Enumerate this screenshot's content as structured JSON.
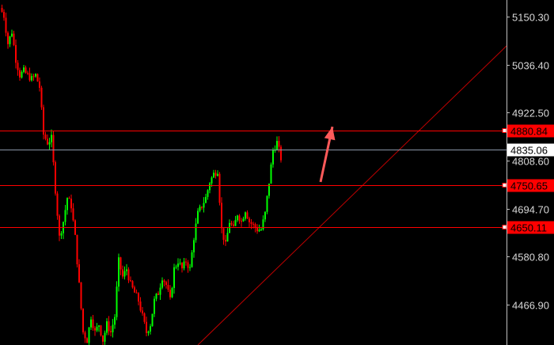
{
  "chart_data": {
    "type": "candlestick",
    "y_range": [
      4371.2,
      5189.7
    ],
    "y_ticks": [
      "5150.30",
      "5036.40",
      "4922.50",
      "4808.60",
      "4694.70",
      "4580.80",
      "4466.90"
    ],
    "closes": [
      5170.9,
      5152.2,
      5086.5,
      5114.6,
      5048.9,
      5011.4,
      5020.8,
      5011.4,
      5002.0,
      5011.4,
      4983.2,
      4870.6,
      4851.8,
      4861.2,
      4739.2,
      4626.6,
      4664.1,
      4720.4,
      4701.7,
      4626.6,
      4514.0,
      4401.4,
      4382.6,
      4438.9,
      4401.4,
      4420.1,
      4382.6,
      4420.1,
      4401.4,
      4438.9,
      4570.3,
      4532.7,
      4551.5,
      4514.0,
      4495.2,
      4476.4,
      4438.9,
      4401.4,
      4420.1,
      4476.4,
      4495.2,
      4532.7,
      4514.0,
      4476.4,
      4551.5,
      4570.3,
      4551.5,
      4570.3,
      4551.5,
      4626.6,
      4682.9,
      4701.7,
      4720.4,
      4758.0,
      4776.8,
      4786.2,
      4645.4,
      4607.8,
      4664.1,
      4645.4,
      4682.9,
      4664.1,
      4692.3,
      4664.1,
      4654.8,
      4645.4,
      4645.4,
      4682.9,
      4758.0,
      4833.1,
      4851.8,
      4814.3
    ],
    "horizontal_levels": [
      {
        "price": 4880.84,
        "label": "4880.84",
        "color": "#ff0000",
        "style": "red"
      },
      {
        "price": 4835.06,
        "label": "4835.06",
        "color": "#8a96a8",
        "style": "current"
      },
      {
        "price": 4750.65,
        "label": "4750.65",
        "color": "#ff0000",
        "style": "red"
      },
      {
        "price": 4650.11,
        "label": "4650.11",
        "color": "#ff0000",
        "style": "red"
      }
    ],
    "trendline": {
      "from": [
        50,
        4371.2
      ],
      "to": [
        128,
        5080.8
      ],
      "color": "#c00000"
    },
    "arrow": {
      "from": [
        81,
        4758.0
      ],
      "to": [
        84,
        4889.0
      ],
      "color": "#ff5a5a"
    },
    "colors": {
      "up": "#00ff00",
      "down": "#ff0000",
      "background": "#000000",
      "axis": "#c0c0c0"
    }
  }
}
